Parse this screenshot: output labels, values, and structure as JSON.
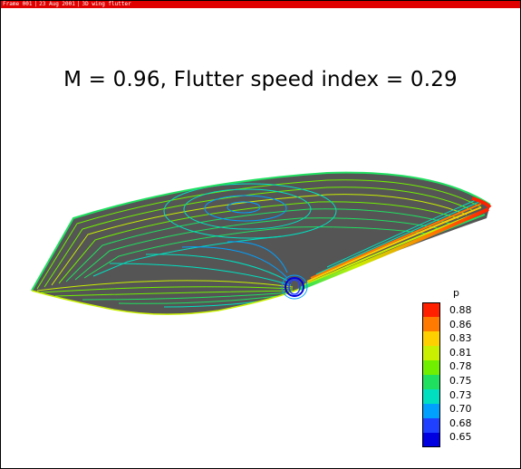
{
  "window": {
    "titlebar_segments": [
      "Frame 001",
      "23 Aug 2001",
      "3D wing flutter"
    ]
  },
  "plot": {
    "title": "M = 0.96, Flutter speed index = 0.29"
  },
  "colors": {
    "titlebar": "#e00000",
    "background": "#ffffff",
    "wing_surface": "#555555"
  },
  "legend": {
    "variable": "p",
    "levels": [
      "0.88",
      "0.86",
      "0.83",
      "0.81",
      "0.78",
      "0.75",
      "0.73",
      "0.70",
      "0.68",
      "0.65"
    ],
    "colors": [
      "#ff2000",
      "#ff7a00",
      "#ffd000",
      "#c8f000",
      "#70f000",
      "#20e060",
      "#00e0c0",
      "#00a0ff",
      "#2040ff",
      "#0000e0"
    ]
  }
}
